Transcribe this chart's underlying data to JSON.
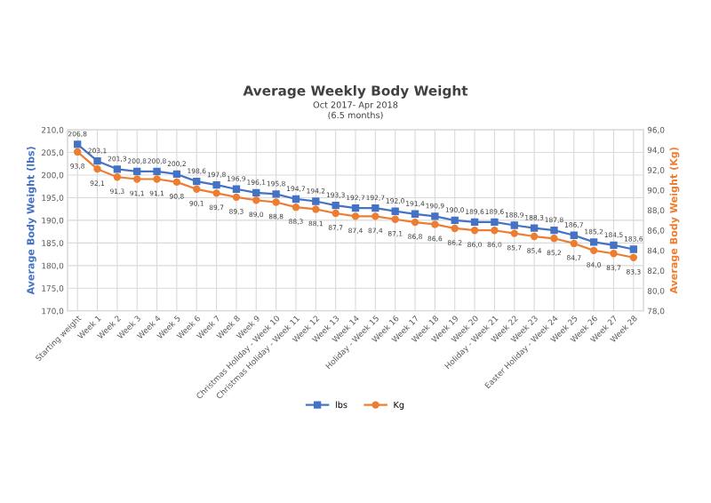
{
  "chart_data": {
    "type": "line",
    "title": "Average Weekly Body Weight",
    "subtitle": "Oct 2017- Apr 2018\n(6.5 months)",
    "ylabel": "Average Body Weight (lbs)",
    "y2label": "Average Body Weight (Kg)",
    "categories": [
      "Starting weight",
      "Week 1",
      "Week 2",
      "Week 3",
      "Week 4",
      "Week 5",
      "Week 6",
      "Week 7",
      "Week 8",
      "Week 9",
      "Christmas Holiday - Week 10",
      "Christmas Holiday - Week 11",
      "Week 12",
      "Week 13",
      "Week 14",
      "Holiday - Week 15",
      "Week 16",
      "Week 17",
      "Week 18",
      "Week 19",
      "Week 20",
      "Holiday - Week 21",
      "Week 22",
      "Week 23",
      "Easter Holiday - Week 24",
      "Week 25",
      "Week 26",
      "Week 27",
      "Week 28"
    ],
    "series": [
      {
        "name": "lbs",
        "color": "#4472c4",
        "marker": "square",
        "values": [
          206.8,
          203.1,
          201.3,
          200.8,
          200.8,
          200.2,
          198.6,
          197.8,
          196.9,
          196.1,
          195.8,
          194.7,
          194.2,
          193.3,
          192.7,
          192.7,
          192.0,
          191.4,
          190.9,
          190.0,
          189.6,
          189.6,
          188.9,
          188.3,
          187.8,
          186.7,
          185.2,
          184.5,
          183.6
        ],
        "value_labels": [
          "206,8",
          "203,1",
          "201,3",
          "200,8",
          "200,8",
          "200,2",
          "198,6",
          "197,8",
          "196,9",
          "196,1",
          "195,8",
          "194,7",
          "194,2",
          "193,3",
          "192,7",
          "192,7",
          "192,0",
          "191,4",
          "190,9",
          "190,0",
          "189,6",
          "189,6",
          "188,9",
          "188,3",
          "187,8",
          "186,7",
          "185,2",
          "184,5",
          "183,6"
        ]
      },
      {
        "name": "Kg",
        "color": "#ed7d31",
        "marker": "circle",
        "axis": "y2",
        "values": [
          93.8,
          92.1,
          91.3,
          91.1,
          91.1,
          90.8,
          90.1,
          89.7,
          89.3,
          89.0,
          88.8,
          88.3,
          88.1,
          87.7,
          87.4,
          87.4,
          87.1,
          86.8,
          86.6,
          86.2,
          86.0,
          86.0,
          85.7,
          85.4,
          85.2,
          84.7,
          84.0,
          83.7,
          83.3
        ],
        "value_labels": [
          "93,8",
          "92,1",
          "91,3",
          "91,1",
          "91,1",
          "90,8",
          "90,1",
          "89,7",
          "89,3",
          "89,0",
          "88,8",
          "88,3",
          "88,1",
          "87,7",
          "87,4",
          "87,4",
          "87,1",
          "86,8",
          "86,6",
          "86,2",
          "86,0",
          "86,0",
          "85,7",
          "85,4",
          "85,2",
          "84,7",
          "84,0",
          "83,7",
          "83,3"
        ]
      }
    ],
    "ylim": [
      170,
      210
    ],
    "yticks": [
      {
        "value": 170,
        "label": "170,0"
      },
      {
        "value": 175,
        "label": "175,0"
      },
      {
        "value": 180,
        "label": "180,0"
      },
      {
        "value": 185,
        "label": "185,0"
      },
      {
        "value": 190,
        "label": "190,0"
      },
      {
        "value": 195,
        "label": "195,0"
      },
      {
        "value": 200,
        "label": "200,0"
      },
      {
        "value": 205,
        "label": "205,0"
      },
      {
        "value": 210,
        "label": "210,0"
      }
    ],
    "y2lim": [
      78,
      96
    ],
    "y2ticks": [
      {
        "value": 78,
        "label": "78,0"
      },
      {
        "value": 80,
        "label": "80,0"
      },
      {
        "value": 82,
        "label": "82,0"
      },
      {
        "value": 84,
        "label": "84,0"
      },
      {
        "value": 86,
        "label": "86,0"
      },
      {
        "value": 88,
        "label": "88,0"
      },
      {
        "value": 90,
        "label": "90,0"
      },
      {
        "value": 92,
        "label": "92,0"
      },
      {
        "value": 94,
        "label": "94,0"
      },
      {
        "value": 96,
        "label": "96,0"
      }
    ],
    "grid": true,
    "legend": "bottom",
    "line_style": "solid"
  }
}
